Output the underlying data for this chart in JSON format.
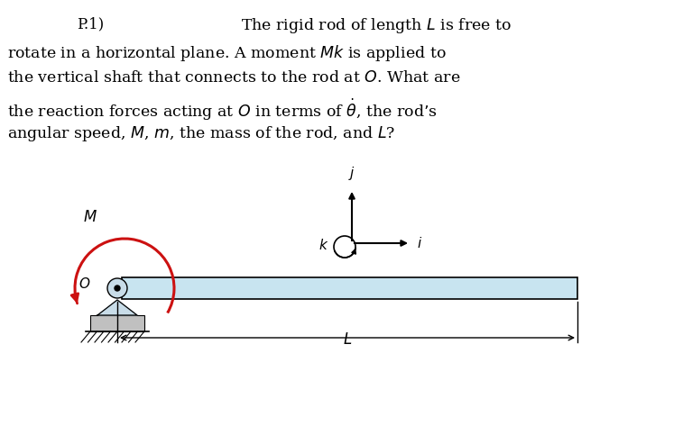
{
  "background_color": "#ffffff",
  "text_color": "#000000",
  "fig_width": 7.57,
  "fig_height": 4.93,
  "dpi": 100,
  "rod_color": "#c8e4f0",
  "rod_edge_color": "#000000",
  "pivot_fill": "#c8dce8",
  "ground_fill": "#c0c0c0",
  "moment_color": "#cc1111",
  "axes_color": "#000000",
  "text_fontsize": 12.5,
  "label_fontsize": 12.0,
  "p1_label": "P.1)",
  "lines": [
    "The rigid rod of length $L$ is free to",
    "rotate in a horizontal plane. A moment $\\mathit{Mk}$ is applied to",
    "the vertical shaft that connects to the rod at $O$. What are",
    "the reaction forces acting at $O$ in terms of $\\dot{\\theta}$, the rod’s",
    "angular speed, $M$, $m$, the mass of the rod, and $L$?"
  ]
}
